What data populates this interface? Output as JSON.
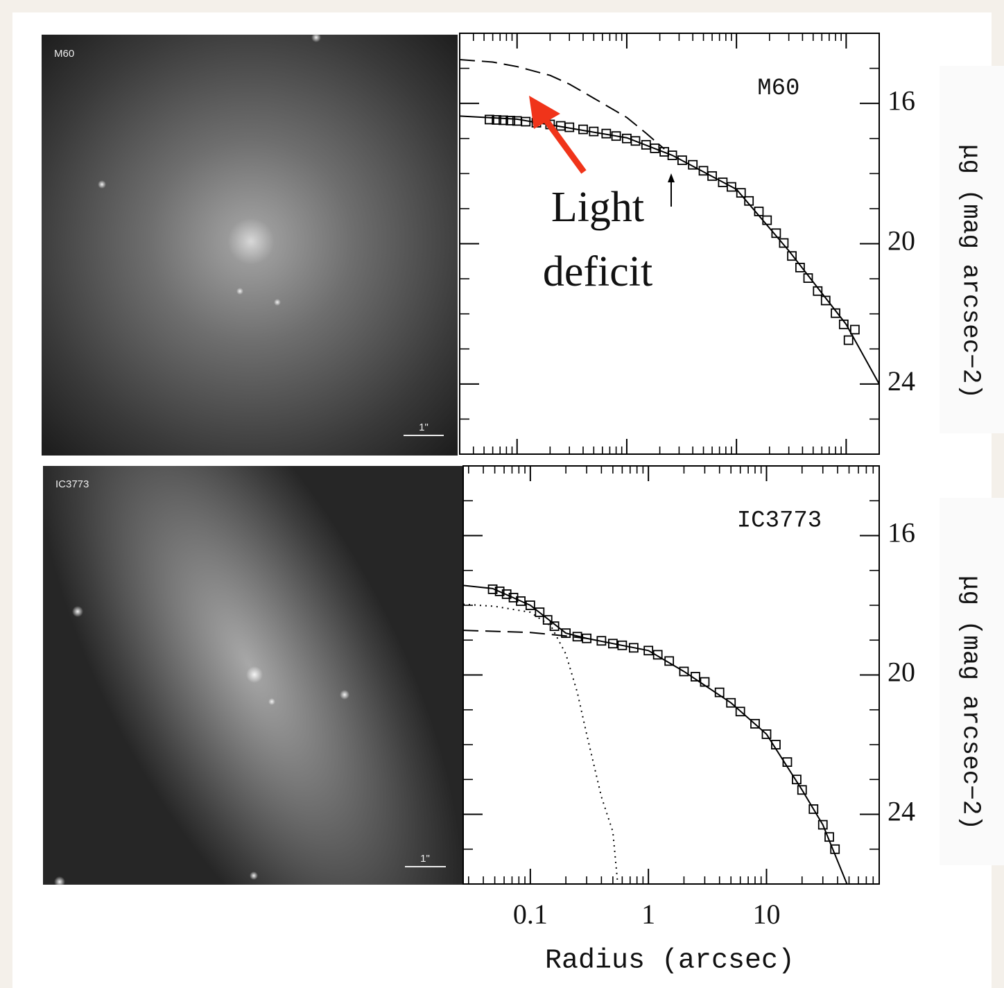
{
  "images": [
    {
      "label": "M60",
      "scale_bar": "1\""
    },
    {
      "label": "IC3773",
      "scale_bar": "1\""
    }
  ],
  "chart_data": [
    {
      "type": "profile",
      "log_x": true,
      "xtick_labels": false,
      "annotation": "M60",
      "callout": [
        "Light",
        "deficit"
      ],
      "callout_color": "#f0341a",
      "y_label": "μg (mag arcsec−2)",
      "xlim": [
        0.03,
        200
      ],
      "xticks": [
        0.1,
        1,
        10,
        100
      ],
      "minor_xticks": [
        0.04,
        0.05,
        0.06,
        0.07,
        0.08,
        0.09,
        0.2,
        0.3,
        0.4,
        0.5,
        0.6,
        0.7,
        0.8,
        0.9,
        2,
        3,
        4,
        5,
        6,
        7,
        8,
        9,
        20,
        30,
        40,
        50,
        60,
        70,
        80,
        90
      ],
      "ylim": [
        14,
        26
      ],
      "yticks": [
        16,
        20,
        24
      ],
      "minor_yticks": [
        15,
        17,
        18,
        19,
        21,
        22,
        23,
        25
      ],
      "points": {
        "x": [
          0.056,
          0.065,
          0.075,
          0.087,
          0.1,
          0.12,
          0.15,
          0.2,
          0.25,
          0.3,
          0.4,
          0.5,
          0.65,
          0.8,
          1,
          1.2,
          1.5,
          1.8,
          2.2,
          2.6,
          3.2,
          4,
          5,
          6,
          7.5,
          9,
          11,
          13,
          16,
          19,
          23,
          27,
          32,
          38,
          45,
          55,
          65,
          80,
          95,
          105,
          120
        ],
        "values": [
          16.46,
          16.47,
          16.48,
          16.49,
          16.5,
          16.52,
          16.55,
          16.6,
          16.64,
          16.68,
          16.74,
          16.8,
          16.86,
          16.93,
          17.0,
          17.07,
          17.18,
          17.28,
          17.38,
          17.48,
          17.62,
          17.75,
          17.92,
          18.07,
          18.25,
          18.38,
          18.55,
          18.78,
          19.08,
          19.33,
          19.7,
          19.98,
          20.35,
          20.68,
          20.98,
          21.35,
          21.62,
          21.98,
          22.3,
          22.75,
          22.45
        ]
      },
      "model_curves": [
        {
          "style": "solid",
          "x": [
            0.03,
            0.1,
            1,
            2.6,
            10,
            30,
            100,
            200
          ],
          "values": [
            16.36,
            16.45,
            16.98,
            17.48,
            18.45,
            20.2,
            22.3,
            24.0
          ]
        },
        {
          "style": "dashed",
          "x": [
            0.03,
            0.06,
            0.1,
            0.2,
            0.3,
            0.5,
            1,
            1.5,
            2.2
          ],
          "values": [
            14.75,
            14.82,
            14.95,
            15.2,
            15.45,
            15.85,
            16.4,
            16.85,
            17.3
          ]
        }
      ]
    },
    {
      "type": "profile",
      "log_x": true,
      "xtick_labels": true,
      "annotation": "IC3773",
      "x_label": "Radius (arcsec)",
      "y_label": "μg (mag arcsec−2)",
      "xlim": [
        0.027,
        90
      ],
      "xticks": [
        0.1,
        1,
        10
      ],
      "minor_xticks": [
        0.03,
        0.04,
        0.05,
        0.06,
        0.07,
        0.08,
        0.09,
        0.2,
        0.3,
        0.4,
        0.5,
        0.6,
        0.7,
        0.8,
        0.9,
        2,
        3,
        4,
        5,
        6,
        7,
        8,
        9,
        20,
        30,
        40,
        50,
        60,
        70,
        80
      ],
      "ylim": [
        14,
        26
      ],
      "yticks": [
        16,
        20,
        24
      ],
      "minor_yticks": [
        15,
        17,
        18,
        19,
        21,
        22,
        23,
        25
      ],
      "points": {
        "x": [
          0.048,
          0.055,
          0.063,
          0.072,
          0.083,
          0.1,
          0.12,
          0.14,
          0.16,
          0.2,
          0.25,
          0.3,
          0.4,
          0.5,
          0.6,
          0.75,
          1,
          1.2,
          1.5,
          2,
          2.5,
          3,
          4,
          5,
          6,
          8,
          10,
          12,
          15,
          18,
          20,
          25,
          30,
          34,
          38
        ],
        "values": [
          17.54,
          17.6,
          17.68,
          17.78,
          17.88,
          18.0,
          18.2,
          18.42,
          18.6,
          18.8,
          18.9,
          18.95,
          19.02,
          19.1,
          19.15,
          19.22,
          19.3,
          19.42,
          19.6,
          19.9,
          20.05,
          20.2,
          20.5,
          20.8,
          21.05,
          21.4,
          21.7,
          22.0,
          22.5,
          23.0,
          23.3,
          23.85,
          24.3,
          24.65,
          25.0
        ]
      },
      "model_curves": [
        {
          "style": "solid",
          "x": [
            0.027,
            0.048,
            0.1,
            0.2,
            0.3,
            1,
            2,
            5,
            10,
            20,
            30,
            48
          ],
          "values": [
            17.43,
            17.52,
            18.0,
            18.8,
            18.95,
            19.3,
            19.9,
            20.8,
            21.7,
            23.3,
            24.3,
            26
          ]
        },
        {
          "style": "dashed",
          "x": [
            0.027,
            0.1,
            0.2,
            0.3
          ],
          "values": [
            18.72,
            18.78,
            18.88,
            18.95
          ]
        },
        {
          "style": "dotted",
          "x": [
            0.027,
            0.05,
            0.1,
            0.15,
            0.2,
            0.25,
            0.3,
            0.4,
            0.5,
            0.55
          ],
          "values": [
            17.97,
            18.03,
            18.2,
            18.6,
            19.4,
            20.5,
            21.7,
            23.5,
            24.5,
            26
          ]
        }
      ]
    }
  ]
}
